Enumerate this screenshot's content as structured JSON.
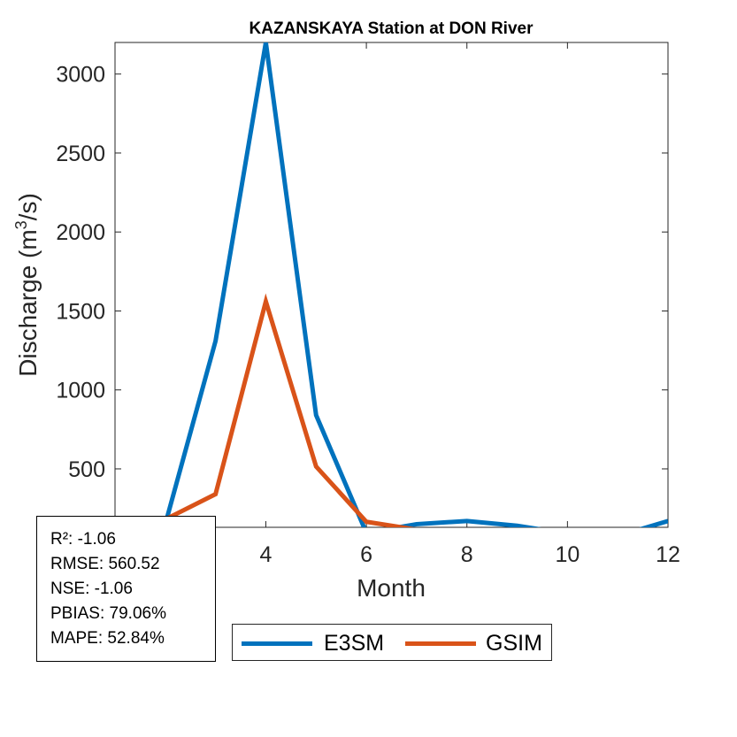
{
  "chart_data": {
    "type": "line",
    "title": "KAZANSKAYA  Station at  DON  River",
    "xlabel": "Month",
    "ylabel_main": "Discharge (m",
    "ylabel_sup": "3",
    "ylabel_tail": "/s)",
    "xlim": [
      1,
      12
    ],
    "ylim": [
      130,
      3200
    ],
    "xticks": [
      4,
      6,
      8,
      10,
      12
    ],
    "yticks": [
      500,
      1000,
      1500,
      2000,
      2500,
      3000
    ],
    "x": [
      1,
      2,
      3,
      4,
      5,
      6,
      7,
      8,
      9,
      10,
      11,
      12
    ],
    "series": [
      {
        "name": "E3SM",
        "color": "#0072BD",
        "values": [
          70,
          150,
          1310,
          3200,
          840,
          95,
          150,
          170,
          140,
          90,
          75,
          170
        ]
      },
      {
        "name": "GSIM",
        "color": "#D95319",
        "values": [
          75,
          180,
          340,
          1560,
          515,
          165,
          115,
          90,
          85,
          95,
          110,
          110
        ]
      }
    ],
    "grid": false,
    "legend_position": "bottom-outside"
  },
  "stats": [
    "R²: -1.06",
    "RMSE: 560.52",
    "NSE: -1.06",
    "PBIAS: 79.06%",
    "MAPE: 52.84%"
  ]
}
